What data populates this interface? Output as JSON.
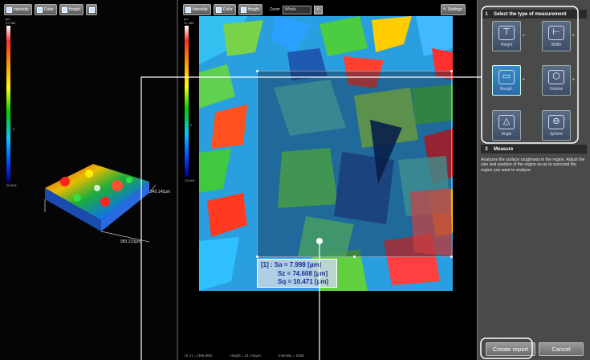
{
  "left_toolbar": {
    "intensity_label": "Intensity",
    "color_label": "Color",
    "height_label": "Height"
  },
  "left_colorbar": {
    "unit": "µm",
    "max": "47.385",
    "mid": "0",
    "min": "-23.604"
  },
  "view3d": {
    "x_dimension": "983.223µm",
    "y_dimension": "345.145µm"
  },
  "center_toolbar": {
    "intensity_label": "Intensity",
    "color_label": "Color",
    "height_label": "Height",
    "zoom_label": "Zoom",
    "zoom_value": "Whole",
    "settings_label": "Settings"
  },
  "center_colorbar": {
    "unit": "µm",
    "max": "47.385",
    "mid": "0",
    "min": "-23.604"
  },
  "results": {
    "lines": [
      "[1] : Sa = 7.998 [µm]",
      "Sz = 74.608 [µm]",
      "Sq = 10.471 [µm]"
    ]
  },
  "status_bar": {
    "coords": "(X,Y) = (386,980)",
    "height": "Height = 31.744µm",
    "intensity": "Intensity = 0026"
  },
  "panel": {
    "step1_num": "1",
    "step1_title": "Select the type of measurement",
    "buttons": [
      {
        "label": "Height",
        "icon": "height-icon"
      },
      {
        "label": "Width",
        "icon": "width-icon"
      },
      {
        "label": "Rough.",
        "icon": "roughness-icon"
      },
      {
        "label": "Volume",
        "icon": "volume-icon"
      },
      {
        "label": "Angle",
        "icon": "angle-icon"
      },
      {
        "label": "Sphere",
        "icon": "sphere-icon"
      }
    ],
    "selected": "Rough.",
    "step2_num": "2",
    "step2_title": "Measure",
    "instructions": "Analyzes the surface roughness in the region. Adjust the size and position of the region so as to surround the region you want to analyze.",
    "create_report_label": "Create report",
    "cancel_label": "Cancel"
  },
  "colors": {
    "accent_selected": "#2a6aa6",
    "callout": "#ffffff"
  }
}
